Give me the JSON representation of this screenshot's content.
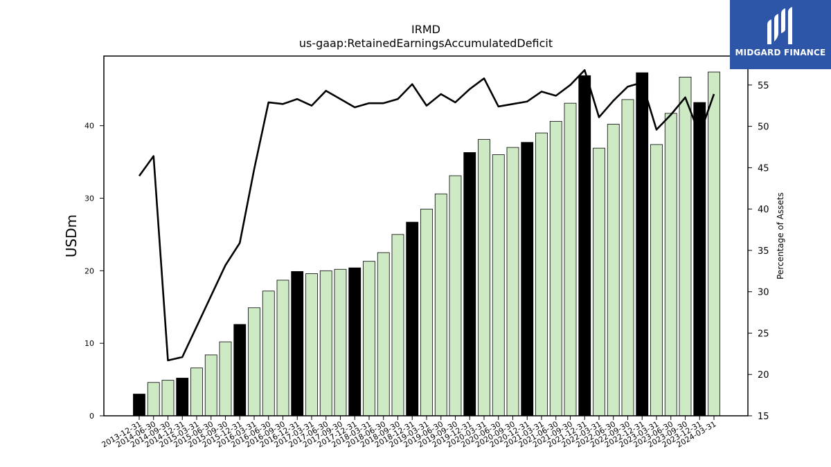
{
  "brand": {
    "name": "MIDGARD FINANCE",
    "color": "#2d56a8",
    "icon": "midgard-logo-icon"
  },
  "chart_data": {
    "type": "bar",
    "title": "IRMD",
    "subtitle": "us-gaap:RetainedEarningsAccumulatedDeficit",
    "ylabel": "USDm",
    "y2label": "Percentage of Assets",
    "ylim": [
      0,
      49.6
    ],
    "y2lim": [
      15,
      58.5
    ],
    "yticks": [
      0,
      10,
      20,
      30,
      40
    ],
    "y2ticks": [
      15,
      20,
      25,
      30,
      35,
      40,
      45,
      50,
      55
    ],
    "colors": {
      "annual": "#000000",
      "quarterly": "#cdeac4",
      "line": "#000000"
    },
    "categories": [
      "2013-12-31",
      "2014-06-30",
      "2014-09-30",
      "2014-12-31",
      "2015-03-31",
      "2015-06-30",
      "2015-09-30",
      "2015-12-31",
      "2016-03-31",
      "2016-06-30",
      "2016-09-30",
      "2016-12-31",
      "2017-03-31",
      "2017-06-30",
      "2017-09-30",
      "2017-12-31",
      "2018-03-31",
      "2018-06-30",
      "2018-09-30",
      "2018-12-31",
      "2019-03-31",
      "2019-06-30",
      "2019-09-30",
      "2019-12-31",
      "2020-03-31",
      "2020-06-30",
      "2020-09-30",
      "2020-12-31",
      "2021-03-31",
      "2021-06-30",
      "2021-09-30",
      "2021-12-31",
      "2022-03-31",
      "2022-06-30",
      "2022-09-30",
      "2022-12-31",
      "2023-03-31",
      "2023-06-30",
      "2023-09-30",
      "2023-12-31",
      "2024-03-31"
    ],
    "series": [
      {
        "type": "bar",
        "values": [
          3.0,
          4.6,
          4.9,
          5.2,
          6.6,
          8.4,
          10.2,
          12.6,
          14.9,
          17.2,
          18.7,
          19.9,
          19.6,
          20.0,
          20.2,
          20.4,
          21.3,
          22.5,
          25.0,
          26.7,
          28.5,
          30.6,
          33.1,
          36.3,
          38.1,
          36.0,
          37.0,
          37.7,
          39.0,
          40.6,
          43.1,
          46.9,
          36.9,
          40.2,
          43.6,
          47.3,
          37.4,
          41.7,
          46.7,
          43.2,
          47.4
        ],
        "annual": [
          true,
          false,
          false,
          true,
          false,
          false,
          false,
          true,
          false,
          false,
          false,
          true,
          false,
          false,
          false,
          true,
          false,
          false,
          false,
          true,
          false,
          false,
          false,
          true,
          false,
          false,
          false,
          true,
          false,
          false,
          false,
          true,
          false,
          false,
          false,
          true,
          false,
          false,
          false,
          true,
          false
        ]
      },
      {
        "type": "line",
        "axis": "right",
        "values": [
          44.0,
          46.4,
          21.7,
          22.1,
          25.8,
          29.5,
          33.2,
          35.9,
          44.8,
          52.9,
          52.7,
          53.3,
          52.5,
          54.3,
          53.3,
          52.3,
          52.8,
          52.8,
          53.3,
          55.1,
          52.5,
          53.9,
          52.9,
          54.5,
          55.8,
          52.4,
          52.7,
          53.0,
          54.2,
          53.7,
          55.0,
          56.8,
          51.1,
          53.1,
          54.8,
          55.3,
          49.6,
          51.4,
          53.5,
          49.0,
          53.9
        ]
      }
    ]
  }
}
